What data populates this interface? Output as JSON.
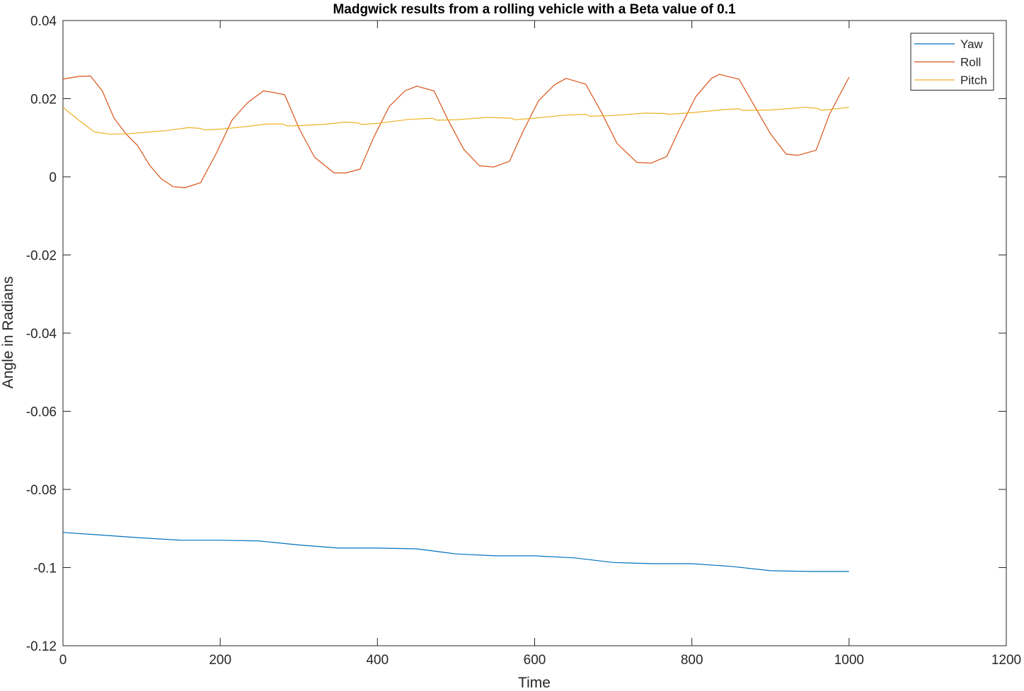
{
  "chart_data": {
    "type": "line",
    "title": "Madgwick results from a rolling vehicle with a Beta value of 0.1",
    "xlabel": "Time",
    "ylabel": "Angle in Radians",
    "xlim": [
      0,
      1200
    ],
    "ylim": [
      -0.12,
      0.04
    ],
    "xticks": [
      0,
      200,
      400,
      600,
      800,
      1000,
      1200
    ],
    "xtick_labels": [
      "0",
      "200",
      "400",
      "600",
      "800",
      "1000",
      "1200"
    ],
    "yticks": [
      -0.12,
      -0.1,
      -0.08,
      -0.06,
      -0.04,
      -0.02,
      0,
      0.02,
      0.04
    ],
    "ytick_labels": [
      "-0.12",
      "-0.1",
      "-0.08",
      "-0.06",
      "-0.04",
      "-0.02",
      "0",
      "0.02",
      "0.04"
    ],
    "grid": false,
    "legend_position": "top-right",
    "series": [
      {
        "name": "Yaw",
        "color": "#0072BD",
        "x": [
          0,
          50,
          100,
          150,
          200,
          250,
          300,
          350,
          400,
          450,
          500,
          550,
          600,
          650,
          700,
          750,
          800,
          850,
          900,
          950,
          1000
        ],
        "y": [
          -0.091,
          -0.0917,
          -0.0924,
          -0.093,
          -0.093,
          -0.0932,
          -0.0942,
          -0.095,
          -0.095,
          -0.0952,
          -0.0965,
          -0.097,
          -0.097,
          -0.0975,
          -0.0987,
          -0.099,
          -0.099,
          -0.0997,
          -0.1008,
          -0.101,
          -0.101
        ]
      },
      {
        "name": "Roll",
        "color": "#D95319",
        "x": [
          0,
          20,
          35,
          50,
          65,
          80,
          95,
          110,
          125,
          140,
          155,
          175,
          195,
          215,
          235,
          255,
          270,
          282,
          300,
          320,
          345,
          360,
          378,
          395,
          415,
          435,
          450,
          472,
          490,
          510,
          530,
          548,
          568,
          585,
          605,
          625,
          640,
          665,
          685,
          705,
          730,
          748,
          768,
          785,
          805,
          825,
          835,
          860,
          880,
          900,
          920,
          935,
          958,
          975,
          1000
        ],
        "y": [
          0.025,
          0.0257,
          0.0258,
          0.022,
          0.015,
          0.011,
          0.008,
          0.003,
          -0.0005,
          -0.0025,
          -0.0028,
          -0.0015,
          0.006,
          0.0145,
          0.019,
          0.022,
          0.0215,
          0.021,
          0.0125,
          0.005,
          0.001,
          0.001,
          0.002,
          0.01,
          0.018,
          0.022,
          0.0232,
          0.022,
          0.0145,
          0.007,
          0.0028,
          0.0025,
          0.004,
          0.0115,
          0.0195,
          0.0235,
          0.0252,
          0.0237,
          0.0165,
          0.0085,
          0.0037,
          0.0035,
          0.0052,
          0.0125,
          0.0205,
          0.0252,
          0.0262,
          0.025,
          0.018,
          0.011,
          0.0058,
          0.0055,
          0.0068,
          0.016,
          0.0255
        ]
      },
      {
        "name": "Pitch",
        "color": "#EDB120",
        "x": [
          0,
          20,
          40,
          60,
          80,
          100,
          130,
          160,
          175,
          180,
          200,
          230,
          260,
          280,
          285,
          300,
          330,
          360,
          375,
          380,
          400,
          440,
          470,
          475,
          500,
          540,
          570,
          575,
          600,
          640,
          665,
          670,
          700,
          740,
          765,
          770,
          800,
          840,
          860,
          865,
          900,
          945,
          960,
          965,
          1000
        ],
        "y": [
          0.0178,
          0.0145,
          0.0115,
          0.0109,
          0.011,
          0.0113,
          0.0118,
          0.0126,
          0.0124,
          0.012,
          0.0122,
          0.0128,
          0.0135,
          0.0135,
          0.013,
          0.0131,
          0.0134,
          0.014,
          0.0138,
          0.0134,
          0.0137,
          0.0147,
          0.015,
          0.0145,
          0.0146,
          0.0152,
          0.015,
          0.0146,
          0.015,
          0.0158,
          0.016,
          0.0155,
          0.0157,
          0.0163,
          0.0162,
          0.016,
          0.0164,
          0.0172,
          0.0174,
          0.017,
          0.0171,
          0.0178,
          0.0175,
          0.017,
          0.0178
        ]
      }
    ]
  }
}
